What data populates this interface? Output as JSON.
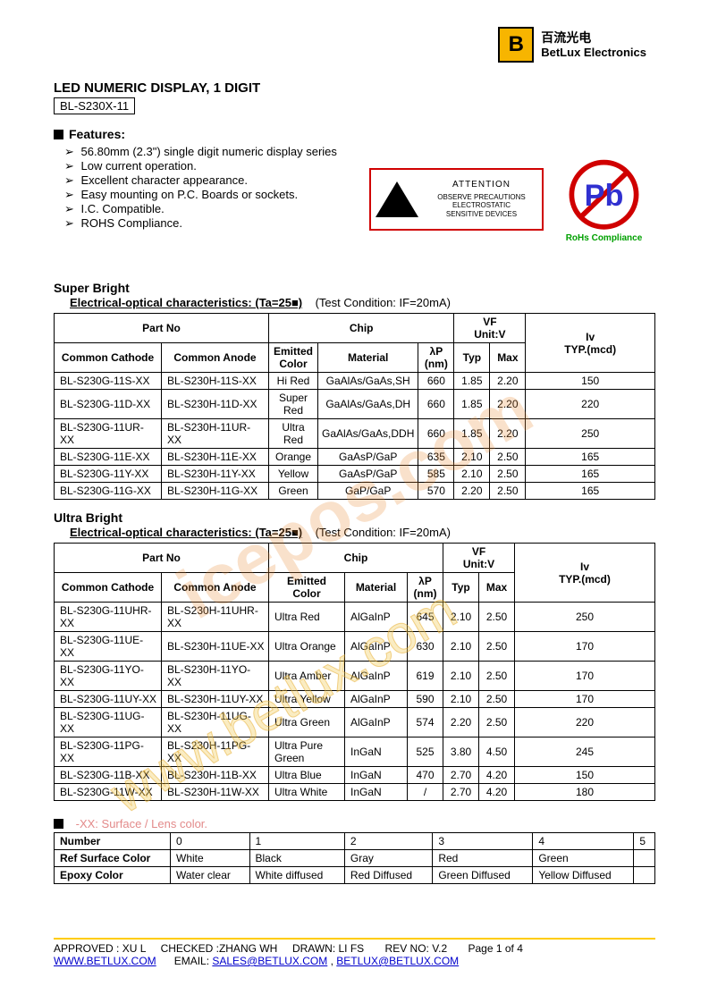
{
  "logo": {
    "letter": "B",
    "cn": "百流光电",
    "en": "BetLux Electronics",
    "box_color": "#f7b500"
  },
  "title": "LED NUMERIC DISPLAY, 1 DIGIT",
  "model": "BL-S230X-11",
  "features_heading": "Features:",
  "features": [
    "56.80mm (2.3\") single digit numeric display series",
    "Low current operation.",
    "Excellent character appearance.",
    "Easy mounting on P.C. Boards or sockets.",
    "I.C. Compatible.",
    "ROHS Compliance."
  ],
  "esd": {
    "attention": "ATTENTION",
    "line1": "OBSERVE PRECAUTIONS",
    "line2": "ELECTROSTATIC",
    "line3": "SENSITIVE DEVICES",
    "border_color": "#d00000"
  },
  "pbfree": {
    "symbol": "Pb",
    "label": "RoHs Compliance",
    "circle_color": "#d00000",
    "text_color": "#3030d0",
    "label_color": "#00a000"
  },
  "super_bright": {
    "heading": "Super Bright",
    "char_line": "Electrical-optical characteristics: (Ta=25■)",
    "cond": "(Test Condition: IF=20mA)",
    "headers": {
      "part_no": "Part No",
      "chip": "Chip",
      "vf": "VF",
      "vf_unit": "Unit:V",
      "iv": "Iv",
      "iv_unit": "TYP.(mcd)",
      "cc": "Common Cathode",
      "ca": "Common Anode",
      "color": "Emitted Color",
      "material": "Material",
      "lp": "λP",
      "lp_unit": "(nm)",
      "typ": "Typ",
      "max": "Max"
    },
    "rows": [
      {
        "cc": "BL-S230G-11S-XX",
        "ca": "BL-S230H-11S-XX",
        "color": "Hi Red",
        "material": "GaAlAs/GaAs,SH",
        "lp": "660",
        "typ": "1.85",
        "max": "2.20",
        "iv": "150"
      },
      {
        "cc": "BL-S230G-11D-XX",
        "ca": "BL-S230H-11D-XX",
        "color": "Super Red",
        "material": "GaAlAs/GaAs,DH",
        "lp": "660",
        "typ": "1.85",
        "max": "2.20",
        "iv": "220"
      },
      {
        "cc": "BL-S230G-11UR-XX",
        "ca": "BL-S230H-11UR-XX",
        "color": "Ultra Red",
        "material": "GaAlAs/GaAs,DDH",
        "lp": "660",
        "typ": "1.85",
        "max": "2.20",
        "iv": "250"
      },
      {
        "cc": "BL-S230G-11E-XX",
        "ca": "BL-S230H-11E-XX",
        "color": "Orange",
        "material": "GaAsP/GaP",
        "lp": "635",
        "typ": "2.10",
        "max": "2.50",
        "iv": "165"
      },
      {
        "cc": "BL-S230G-11Y-XX",
        "ca": "BL-S230H-11Y-XX",
        "color": "Yellow",
        "material": "GaAsP/GaP",
        "lp": "585",
        "typ": "2.10",
        "max": "2.50",
        "iv": "165"
      },
      {
        "cc": "BL-S230G-11G-XX",
        "ca": "BL-S230H-11G-XX",
        "color": "Green",
        "material": "GaP/GaP",
        "lp": "570",
        "typ": "2.20",
        "max": "2.50",
        "iv": "165"
      }
    ]
  },
  "ultra_bright": {
    "heading": "Ultra Bright",
    "char_line": "Electrical-optical characteristics: (Ta=25■)",
    "cond": "(Test Condition: IF=20mA)",
    "headers": {
      "part_no": "Part No",
      "chip": "Chip",
      "vf": "VF",
      "vf_unit": "Unit:V",
      "iv": "Iv",
      "iv_unit": "TYP.(mcd)",
      "cc": "Common Cathode",
      "ca": "Common Anode",
      "color": "Emitted Color",
      "material": "Material",
      "lp": "λP",
      "lp_unit": "(nm)",
      "typ": "Typ",
      "max": "Max"
    },
    "rows": [
      {
        "cc": "BL-S230G-11UHR-XX",
        "ca": "BL-S230H-11UHR-XX",
        "color": "Ultra Red",
        "material": "AlGaInP",
        "lp": "645",
        "typ": "2.10",
        "max": "2.50",
        "iv": "250"
      },
      {
        "cc": "BL-S230G-11UE-XX",
        "ca": "BL-S230H-11UE-XX",
        "color": "Ultra Orange",
        "material": "AlGaInP",
        "lp": "630",
        "typ": "2.10",
        "max": "2.50",
        "iv": "170"
      },
      {
        "cc": "BL-S230G-11YO-XX",
        "ca": "BL-S230H-11YO-XX",
        "color": "Ultra Amber",
        "material": "AlGaInP",
        "lp": "619",
        "typ": "2.10",
        "max": "2.50",
        "iv": "170"
      },
      {
        "cc": "BL-S230G-11UY-XX",
        "ca": "BL-S230H-11UY-XX",
        "color": "Ultra Yellow",
        "material": "AlGaInP",
        "lp": "590",
        "typ": "2.10",
        "max": "2.50",
        "iv": "170"
      },
      {
        "cc": "BL-S230G-11UG-XX",
        "ca": "BL-S230H-11UG-XX",
        "color": "Ultra Green",
        "material": "AlGaInP",
        "lp": "574",
        "typ": "2.20",
        "max": "2.50",
        "iv": "220"
      },
      {
        "cc": "BL-S230G-11PG-XX",
        "ca": "BL-S230H-11PG-XX",
        "color": "Ultra Pure Green",
        "material": "InGaN",
        "lp": "525",
        "typ": "3.80",
        "max": "4.50",
        "iv": "245"
      },
      {
        "cc": "BL-S230G-11B-XX",
        "ca": "BL-S230H-11B-XX",
        "color": "Ultra Blue",
        "material": "InGaN",
        "lp": "470",
        "typ": "2.70",
        "max": "4.20",
        "iv": "150"
      },
      {
        "cc": "BL-S230G-11W-XX",
        "ca": "BL-S230H-11W-XX",
        "color": "Ultra White",
        "material": "InGaN",
        "lp": "/",
        "typ": "2.70",
        "max": "4.20",
        "iv": "180"
      }
    ]
  },
  "lens": {
    "heading": "-XX: Surface / Lens color.",
    "row_labels": [
      "Number",
      "Ref Surface Color",
      "Epoxy Color"
    ],
    "cols": [
      "0",
      "1",
      "2",
      "3",
      "4",
      "5"
    ],
    "surface": [
      "White",
      "Black",
      "Gray",
      "Red",
      "Green",
      ""
    ],
    "epoxy": [
      "Water clear",
      "White diffused",
      "Red Diffused",
      "Green Diffused",
      "Yellow Diffused",
      ""
    ]
  },
  "footer": {
    "approved_label": "APPROVED : ",
    "approved": "XU L",
    "checked_label": "CHECKED :",
    "checked": "ZHANG WH",
    "drawn_label": "DRAWN: ",
    "drawn": "LI FS",
    "rev_label": "REV NO: ",
    "rev": "V.2",
    "page": "Page 1 of 4",
    "url": "WWW.BETLUX.COM",
    "email_label": "EMAIL: ",
    "email1": "SALES@BETLUX.COM",
    "sep": " , ",
    "email2": "BETLUX@BETLUX.COM"
  },
  "watermark1": "icepos.com",
  "watermark2": "www.betlux.com"
}
